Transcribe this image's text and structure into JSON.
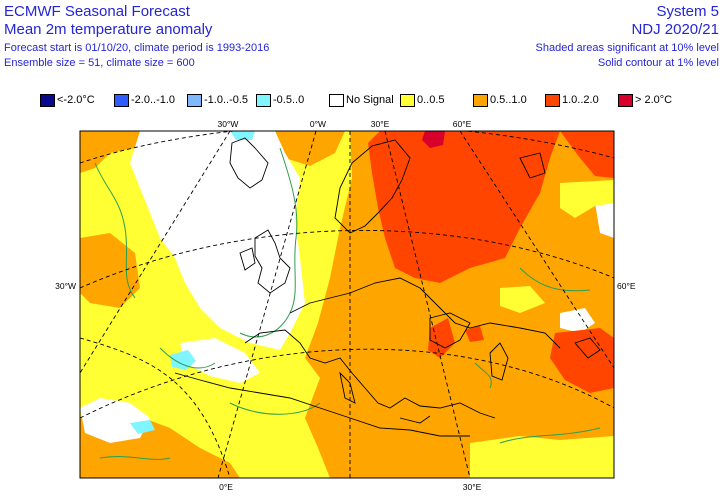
{
  "header": {
    "title": "ECMWF Seasonal Forecast",
    "subtitle": "Mean 2m temperature anomaly",
    "forecast_line": "Forecast start is 01/10/20, climate period is 1993-2016",
    "ensemble_line": "Ensemble size = 51, climate size = 600",
    "system": "System 5",
    "season": "NDJ 2020/21",
    "significance_10": "Shaded areas significant at 10% level",
    "significance_1": "Solid contour at 1% level"
  },
  "legend": [
    {
      "label": "<-2.0°C",
      "color": "#0a0a8c"
    },
    {
      "label": "-2.0..-1.0",
      "color": "#2f5cff"
    },
    {
      "label": "-1.0..-0.5",
      "color": "#7fb8ff"
    },
    {
      "label": "-0.5..0",
      "color": "#7ff5ff"
    },
    {
      "label": "No Signal",
      "color": "#ffffff"
    },
    {
      "label": "0..0.5",
      "color": "#ffff33"
    },
    {
      "label": "0.5..1.0",
      "color": "#ffa500"
    },
    {
      "label": "1.0..2.0",
      "color": "#ff4500"
    },
    {
      "label": "> 2.0°C",
      "color": "#d6002a"
    }
  ],
  "ticks": {
    "top": [
      "30°W",
      "0°W",
      "30°E",
      "60°E"
    ],
    "bottom": [
      "0°E",
      "30°E"
    ],
    "left": "30°W",
    "right": "60°E"
  }
}
